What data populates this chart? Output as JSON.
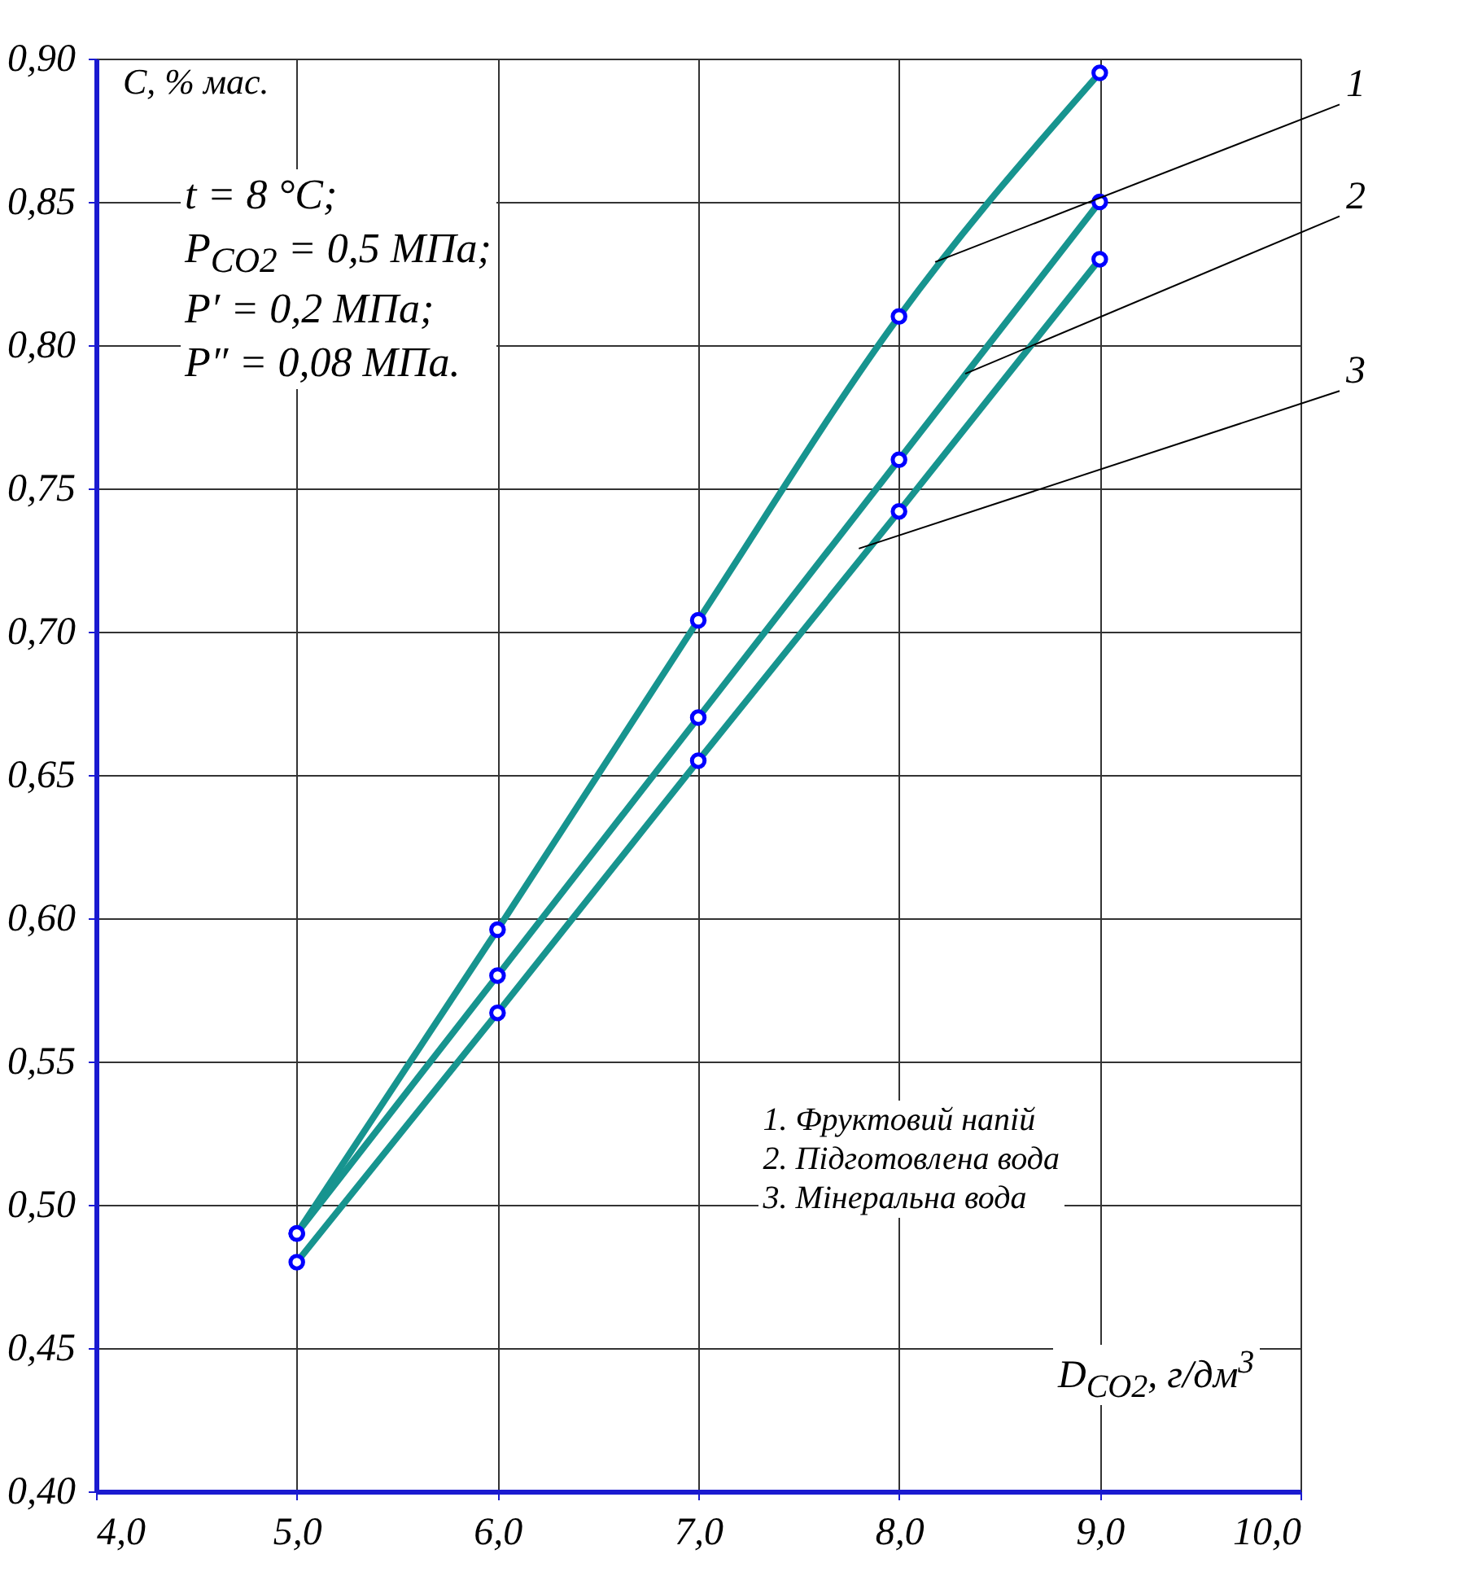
{
  "chart_data": {
    "type": "line",
    "xlabel": "D$_{CO2}$, г/дм$^{3}$",
    "ylabel": "C, % мас.",
    "x": [
      5,
      6,
      7,
      8,
      9
    ],
    "series": [
      {
        "color": "#17948f",
        "values": [
          0.49,
          0.596,
          0.704,
          0.81,
          0.895
        ]
      },
      {
        "color": "#17948f",
        "values": [
          0.49,
          0.58,
          0.67,
          0.76,
          0.85
        ]
      },
      {
        "color": "#17948f",
        "values": [
          0.48,
          0.567,
          0.655,
          0.742,
          0.83
        ]
      }
    ],
    "xlim": [
      4,
      10
    ],
    "ylim": [
      0.4,
      0.9
    ],
    "xticks": [
      {
        "value": 4,
        "label": "4,0"
      },
      {
        "value": 5,
        "label": "5,0"
      },
      {
        "value": 6,
        "label": "6,0"
      },
      {
        "value": 7,
        "label": "7,0"
      },
      {
        "value": 8,
        "label": "8,0"
      },
      {
        "value": 9,
        "label": "9,0"
      },
      {
        "value": 10,
        "label": "10,0"
      }
    ],
    "yticks": [
      {
        "value": 0.4,
        "label": "0,40"
      },
      {
        "value": 0.45,
        "label": "0,45"
      },
      {
        "value": 0.5,
        "label": "0,50"
      },
      {
        "value": 0.55,
        "label": "0,55"
      },
      {
        "value": 0.6,
        "label": "0,60"
      },
      {
        "value": 0.65,
        "label": "0,65"
      },
      {
        "value": 0.7,
        "label": "0,70"
      },
      {
        "value": 0.75,
        "label": "0,75"
      },
      {
        "value": 0.8,
        "label": "0,80"
      },
      {
        "value": 0.85,
        "label": "0,85"
      },
      {
        "value": 0.9,
        "label": "0,90"
      }
    ],
    "grid": true,
    "marker": "circle",
    "line_style": "solid",
    "annotations": [
      "t = 8 °C;\nP$_{CO2}$ = 0,5 МПа;\nP′ = 0,2 МПа;\nP″ = 0,08 МПа.",
      "1. Фруктовий напій\n2. Підготовлена вода\n3. Мінеральна вода",
      {
        "text": "1",
        "x": 8.18,
        "y": 0.829
      },
      {
        "text": "2",
        "x": 8.33,
        "y": 0.79
      },
      {
        "text": "3",
        "x": 7.8,
        "y": 0.729
      }
    ]
  }
}
